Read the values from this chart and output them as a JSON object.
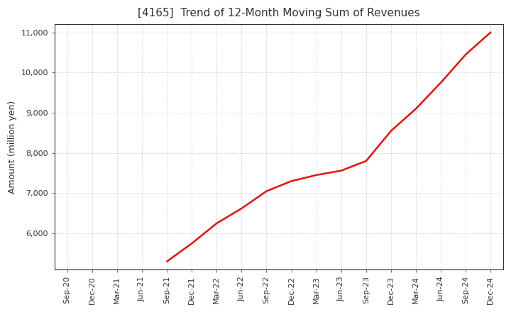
{
  "title": "[4165]  Trend of 12-Month Moving Sum of Revenues",
  "ylabel": "Amount (million yen)",
  "ylim": [
    5100,
    11200
  ],
  "yticks": [
    6000,
    7000,
    8000,
    9000,
    10000,
    11000
  ],
  "line_color": "#e81010",
  "background_color": "#ffffff",
  "plot_bg_color": "#ffffff",
  "grid_color": "#aaaaaa",
  "x_labels": [
    "Sep-20",
    "Dec-20",
    "Mar-21",
    "Jun-21",
    "Sep-21",
    "Dec-21",
    "Mar-22",
    "Jun-22",
    "Sep-22",
    "Dec-22",
    "Mar-23",
    "Jun-23",
    "Sep-23",
    "Dec-23",
    "Mar-24",
    "Jun-24",
    "Sep-24",
    "Dec-24"
  ],
  "data_points": {
    "Sep-21": 5300,
    "Dec-21": 5750,
    "Mar-22": 6250,
    "Jun-22": 6620,
    "Sep-22": 7050,
    "Dec-22": 7300,
    "Mar-23": 7450,
    "Jun-23": 7560,
    "Sep-23": 7800,
    "Dec-23": 8550,
    "Mar-24": 9100,
    "Jun-24": 9750,
    "Sep-24": 10450,
    "Dec-24": 11000
  }
}
